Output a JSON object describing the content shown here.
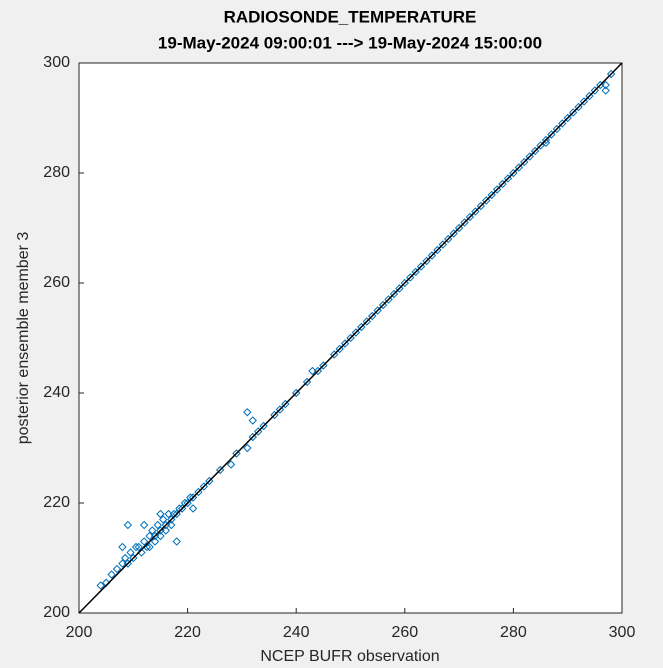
{
  "chart_data": {
    "type": "scatter",
    "title": "RADIOSONDE_TEMPERATURE",
    "subtitle": "19-May-2024 09:00:01 ---> 19-May-2024 15:00:00",
    "x_label": "NCEP BUFR observation",
    "y_label": "posterior ensemble member 3",
    "xlim": [
      200,
      300
    ],
    "ylim": [
      200,
      300
    ],
    "xticks": [
      200,
      220,
      240,
      260,
      280,
      300
    ],
    "yticks": [
      200,
      220,
      240,
      260,
      280,
      300
    ],
    "color": "#0072bd",
    "reference_color": "#000000",
    "x": [
      204,
      205,
      206,
      207,
      208,
      208.5,
      209,
      209.5,
      210,
      210.5,
      211,
      211.5,
      212,
      212.5,
      213,
      213,
      213.5,
      214,
      214,
      214.5,
      215,
      215,
      215.5,
      216,
      216,
      216.5,
      217,
      217,
      217.5,
      218,
      218.5,
      219,
      219.5,
      220,
      220.5,
      221,
      222,
      223,
      224,
      226,
      228,
      229,
      231,
      232,
      233,
      234,
      236,
      237,
      238,
      240,
      242,
      243,
      244,
      245,
      247,
      248,
      249,
      250,
      251,
      252,
      253,
      254,
      255,
      256,
      257,
      258,
      259,
      260,
      261,
      262,
      263,
      264,
      265,
      266,
      267,
      268,
      269,
      270,
      271,
      272,
      273,
      274,
      275,
      276,
      277,
      278,
      279,
      280,
      281,
      282,
      283,
      284,
      285,
      286,
      287,
      288,
      289,
      290,
      291,
      292,
      293,
      294,
      295,
      296,
      297,
      298,
      209,
      231,
      286,
      218,
      232,
      297,
      212,
      215,
      221,
      208
    ],
    "y": [
      205,
      205.5,
      207,
      208,
      209,
      210,
      209,
      211,
      210,
      212,
      212,
      211,
      213,
      212,
      214,
      212,
      215,
      214,
      213,
      216,
      215,
      214,
      217,
      216,
      215,
      218,
      217,
      216,
      218,
      218,
      219,
      219,
      220,
      220,
      221,
      221,
      222,
      223,
      224,
      226,
      227,
      229,
      230,
      232,
      233,
      234,
      236,
      237,
      238,
      240,
      242,
      244,
      244,
      245,
      247,
      248,
      249,
      250,
      251,
      252,
      253,
      254,
      255,
      256,
      257,
      258,
      259,
      260,
      261,
      262,
      263,
      264,
      265,
      266,
      267,
      268,
      269,
      270,
      271,
      272,
      273,
      274,
      275,
      276,
      277,
      278,
      279,
      280,
      281,
      282,
      283,
      284,
      285,
      286,
      287,
      288,
      289,
      290,
      291,
      292,
      293,
      294,
      295,
      296,
      296,
      298,
      216,
      236.5,
      285.5,
      213,
      235,
      295,
      216,
      218,
      219,
      212
    ]
  }
}
